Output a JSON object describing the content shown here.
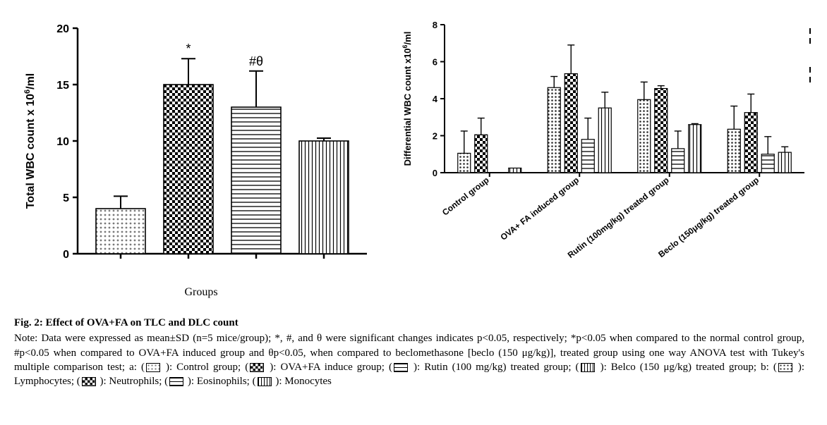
{
  "figure": {
    "title": "Fig. 2: Effect of OVA+FA on TLC and DLC count",
    "note": "Note: Data were expressed as mean±SD (n=5 mice/group); *, #, and θ were significant changes indicates p<0.05, respectively; *p<0.05 when compared to the normal control group, #p<0.05 when compared to OVA+FA induced group and θp<0.05, when compared to beclomethasone [beclo (150 μg/kg)], treated group using one way ANOVA test with Tukey's multiple comparison test; a:",
    "legend_items": [
      {
        "label": ": Control group;",
        "pattern": "dot-gray"
      },
      {
        "label": ": OVA+FA induce group;",
        "pattern": "checker"
      },
      {
        "label": ": Rutin (100 mg/kg) treated group;",
        "pattern": "hstripe"
      },
      {
        "label": ": Belco (150 μg/kg) treated group; b:",
        "pattern": "vstripe"
      },
      {
        "label": ": Lymphocytes;",
        "pattern": "dot-dark"
      },
      {
        "label": ": Neutrophils;",
        "pattern": "checker"
      },
      {
        "label": ": Eosinophils;",
        "pattern": "hstripe"
      },
      {
        "label": ": Monocytes",
        "pattern": "vstripe"
      }
    ]
  },
  "chart_left": {
    "type": "bar",
    "ylabel": "Total WBC count x 10^6/ml",
    "xlabel": "Groups",
    "ylim": [
      0,
      20
    ],
    "yticks": [
      0,
      5,
      10,
      15,
      20
    ],
    "axis_color": "#000000",
    "tick_fontsize": 16,
    "label_fontsize": 16,
    "bar_border": "#000000",
    "bars": [
      {
        "value": 4.0,
        "err": 1.1,
        "pattern": "dot-gray",
        "annotation": ""
      },
      {
        "value": 15.0,
        "err": 2.3,
        "pattern": "checker",
        "annotation": "*"
      },
      {
        "value": 13.0,
        "err": 3.2,
        "pattern": "hstripe",
        "annotation": "#θ"
      },
      {
        "value": 10.0,
        "err": 0.25,
        "pattern": "vstripe",
        "annotation": ""
      }
    ],
    "annotation_fontsize": 18
  },
  "chart_right": {
    "type": "grouped-bar",
    "ylabel": "Differential WBC count x10^6/ml",
    "ylim": [
      0,
      8
    ],
    "yticks": [
      0,
      2,
      4,
      6,
      8
    ],
    "axis_color": "#000000",
    "tick_fontsize": 13,
    "label_fontsize": 13,
    "bar_border": "#000000",
    "groups": [
      {
        "label": "Control group",
        "bars": [
          {
            "value": 1.05,
            "err": 1.2,
            "pattern": "dot-dark"
          },
          {
            "value": 2.05,
            "err": 0.9,
            "pattern": "checker"
          },
          {
            "value": 0.0,
            "err": 0.0,
            "pattern": "hstripe"
          },
          {
            "value": 0.25,
            "err": 0.0,
            "pattern": "vstripe"
          }
        ]
      },
      {
        "label": "OVA+ FA induced group",
        "bars": [
          {
            "value": 4.6,
            "err": 0.6,
            "pattern": "dot-dark"
          },
          {
            "value": 5.35,
            "err": 1.55,
            "pattern": "checker"
          },
          {
            "value": 1.8,
            "err": 1.15,
            "pattern": "hstripe"
          },
          {
            "value": 3.5,
            "err": 0.85,
            "pattern": "vstripe"
          }
        ]
      },
      {
        "label": "Rutin (100mg/kg) treated group",
        "bars": [
          {
            "value": 3.95,
            "err": 0.95,
            "pattern": "dot-dark"
          },
          {
            "value": 4.55,
            "err": 0.15,
            "pattern": "checker"
          },
          {
            "value": 1.3,
            "err": 0.95,
            "pattern": "hstripe"
          },
          {
            "value": 2.6,
            "err": 0.05,
            "pattern": "vstripe"
          }
        ]
      },
      {
        "label": "Beclo (150μg/kg) treated group",
        "bars": [
          {
            "value": 2.35,
            "err": 1.25,
            "pattern": "dot-dark"
          },
          {
            "value": 3.25,
            "err": 1.0,
            "pattern": "checker"
          },
          {
            "value": 1.0,
            "err": 0.95,
            "pattern": "hstripe"
          },
          {
            "value": 1.1,
            "err": 0.3,
            "pattern": "vstripe"
          }
        ]
      }
    ],
    "cutoff_marks": true
  },
  "colors": {
    "black": "#000000",
    "gray_dot": "#7a7a7a",
    "dark_dot": "#2b2b2b",
    "white": "#ffffff"
  }
}
